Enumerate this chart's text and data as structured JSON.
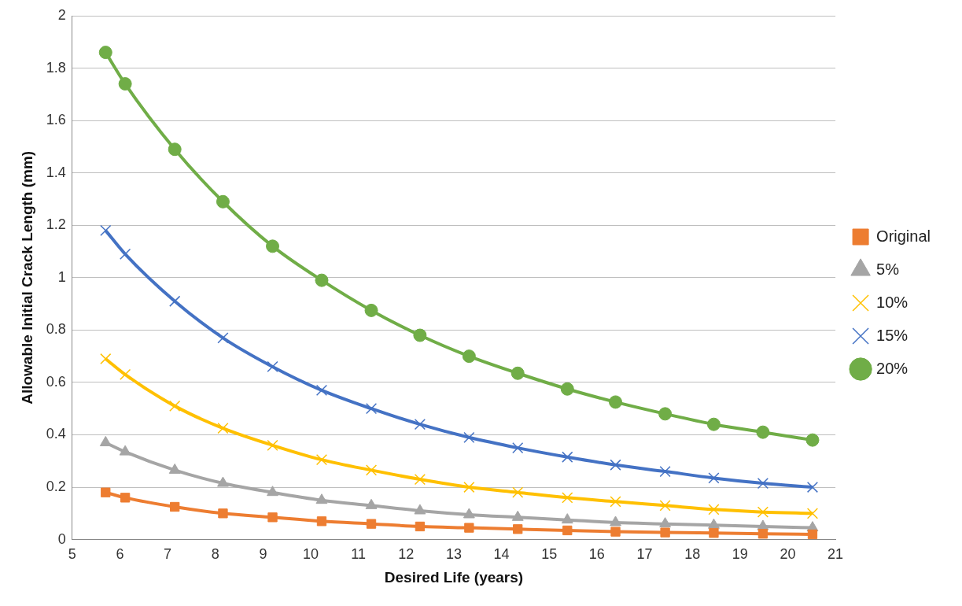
{
  "chart_data": {
    "type": "line",
    "xlabel": "Desired Life (years)",
    "ylabel": "Allowable Initial Crack Length (mm)",
    "x": [
      5.7,
      6.11,
      7.15,
      8.16,
      9.2,
      10.23,
      11.27,
      12.29,
      13.32,
      14.34,
      15.38,
      16.39,
      17.43,
      18.45,
      19.48,
      20.52
    ],
    "xlim": [
      5,
      21
    ],
    "xticks": [
      5,
      6,
      7,
      8,
      9,
      10,
      11,
      12,
      13,
      14,
      15,
      16,
      17,
      18,
      19,
      20,
      21
    ],
    "ylim": [
      0,
      2
    ],
    "yticks": [
      0,
      0.2,
      0.4,
      0.6,
      0.8,
      1,
      1.2,
      1.4,
      1.6,
      1.8,
      2
    ],
    "grid": "y",
    "legend": "right",
    "series": [
      {
        "name": "Original",
        "color": "#ed7d31",
        "marker": "square",
        "values": [
          0.18,
          0.16,
          0.125,
          0.1,
          0.085,
          0.07,
          0.06,
          0.05,
          0.045,
          0.04,
          0.035,
          0.03,
          0.027,
          0.025,
          0.022,
          0.02
        ]
      },
      {
        "name": "5%",
        "color": "#a5a5a5",
        "marker": "triangle",
        "values": [
          0.37,
          0.335,
          0.265,
          0.215,
          0.18,
          0.15,
          0.13,
          0.11,
          0.095,
          0.085,
          0.075,
          0.065,
          0.06,
          0.055,
          0.05,
          0.045
        ]
      },
      {
        "name": "10%",
        "color": "#ffc000",
        "marker": "cross",
        "values": [
          0.69,
          0.63,
          0.51,
          0.425,
          0.36,
          0.305,
          0.265,
          0.23,
          0.2,
          0.18,
          0.16,
          0.145,
          0.13,
          0.115,
          0.105,
          0.1
        ]
      },
      {
        "name": "15%",
        "color": "#4472c4",
        "marker": "cross",
        "values": [
          1.18,
          1.09,
          0.91,
          0.77,
          0.66,
          0.57,
          0.5,
          0.44,
          0.39,
          0.35,
          0.315,
          0.285,
          0.26,
          0.235,
          0.215,
          0.2
        ]
      },
      {
        "name": "20%",
        "color": "#70ad47",
        "marker": "circle",
        "values": [
          1.86,
          1.74,
          1.49,
          1.29,
          1.12,
          0.99,
          0.875,
          0.78,
          0.7,
          0.635,
          0.575,
          0.525,
          0.48,
          0.44,
          0.41,
          0.38
        ]
      }
    ]
  }
}
